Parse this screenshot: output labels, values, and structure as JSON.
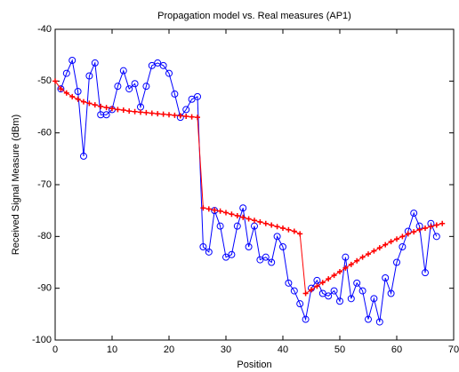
{
  "chart_data": {
    "type": "line",
    "title": "Propagation model vs. Real measures (AP1)",
    "xlabel": "Position",
    "ylabel": "Received Signal Measure (dBm)",
    "xlim": [
      0,
      70
    ],
    "xticks": [
      0,
      10,
      20,
      30,
      40,
      50,
      60,
      70
    ],
    "ylim": [
      -100,
      -40
    ],
    "yticks": [
      -100,
      -90,
      -80,
      -70,
      -60,
      -50,
      -40
    ],
    "grid": false,
    "series": [
      {
        "color": "#0000ff",
        "marker": "circle",
        "x": [
          1,
          2,
          3,
          4,
          5,
          6,
          7,
          8,
          9,
          10,
          11,
          12,
          13,
          14,
          15,
          16,
          17,
          18,
          19,
          20,
          21,
          22,
          23,
          24,
          25,
          26,
          27,
          28,
          29,
          30,
          31,
          32,
          33,
          34,
          35,
          36,
          37,
          38,
          39,
          40,
          41,
          42,
          43,
          44,
          45,
          46,
          47,
          48,
          49,
          50,
          51,
          52,
          53,
          54,
          55,
          56,
          57,
          58,
          59,
          60,
          61,
          62,
          63,
          64,
          65,
          66,
          67
        ],
        "values": [
          -51.5,
          -48.5,
          -46,
          -52,
          -64.5,
          -49,
          -46.5,
          -56.5,
          -56.5,
          -55.5,
          -51,
          -48,
          -51.5,
          -50.5,
          -55,
          -51,
          -47,
          -46.5,
          -47,
          -48.5,
          -52.5,
          -57,
          -55.5,
          -53.5,
          -53,
          -82,
          -83,
          -75,
          -78,
          -84,
          -83.5,
          -78,
          -74.5,
          -82,
          -78,
          -84.5,
          -84,
          -85,
          -80,
          -82,
          -89,
          -90.5,
          -93,
          -96,
          -90,
          -88.5,
          -91,
          -91.5,
          -90.5,
          -92.5,
          -84,
          -92,
          -89,
          -90.5,
          -96,
          -92,
          -96.5,
          -88,
          -91,
          -85,
          -82,
          -79,
          -75.5,
          -78,
          -87,
          -77.5,
          -80
        ]
      },
      {
        "color": "#ff0000",
        "marker": "plus",
        "x": [
          0,
          1,
          2,
          3,
          4,
          5,
          6,
          7,
          8,
          9,
          10,
          11,
          12,
          13,
          14,
          15,
          16,
          17,
          18,
          19,
          20,
          21,
          22,
          23,
          24,
          25,
          26,
          27,
          28,
          29,
          30,
          31,
          32,
          33,
          34,
          35,
          36,
          37,
          38,
          39,
          40,
          41,
          42,
          43,
          44,
          45,
          46,
          47,
          48,
          49,
          50,
          51,
          52,
          53,
          54,
          55,
          56,
          57,
          58,
          59,
          60,
          61,
          62,
          63,
          64,
          65,
          66,
          67,
          68
        ],
        "values": [
          -50,
          -51.5,
          -52.3,
          -53,
          -53.5,
          -54,
          -54.3,
          -54.6,
          -54.9,
          -55.1,
          -55.3,
          -55.5,
          -55.6,
          -55.8,
          -55.9,
          -56,
          -56.1,
          -56.2,
          -56.3,
          -56.4,
          -56.5,
          -56.6,
          -56.7,
          -56.8,
          -56.9,
          -57,
          -74.5,
          -74.7,
          -74.9,
          -75.1,
          -75.4,
          -75.7,
          -76,
          -76.3,
          -76.6,
          -76.9,
          -77.2,
          -77.5,
          -77.8,
          -78.1,
          -78.4,
          -78.7,
          -79,
          -79.5,
          -91,
          -90.3,
          -89.6,
          -88.9,
          -88.2,
          -87.5,
          -86.8,
          -86.1,
          -85.4,
          -84.7,
          -84,
          -83.4,
          -82.8,
          -82.2,
          -81.6,
          -81,
          -80.5,
          -80,
          -79.5,
          -79.1,
          -78.7,
          -78.4,
          -78.1,
          -77.8,
          -77.5
        ]
      }
    ]
  }
}
